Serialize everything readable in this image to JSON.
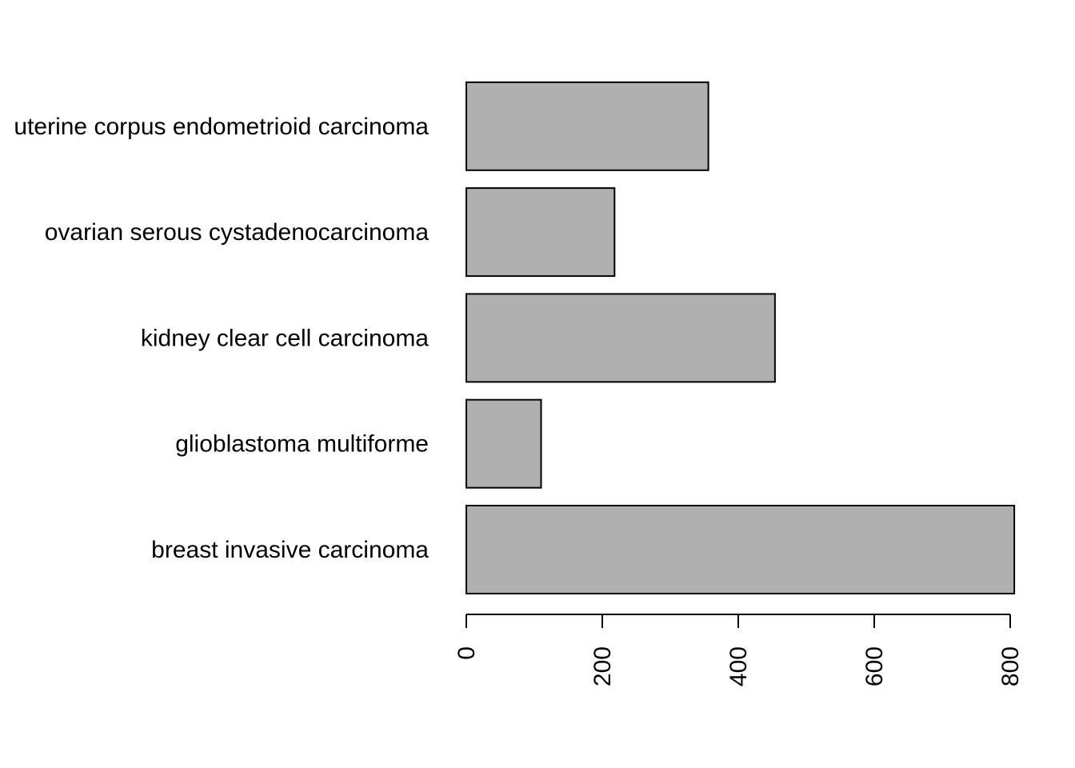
{
  "chart_data": {
    "type": "bar",
    "orientation": "horizontal",
    "categories": [
      "breast invasive carcinoma",
      "glioblastoma multiforme",
      "kidney clear cell carcinoma",
      "ovarian serous cystadenocarcinoma",
      "uterine corpus endometrioid carcinoma"
    ],
    "values": [
      806,
      110,
      454,
      218,
      356
    ],
    "xlim": [
      0,
      800
    ],
    "x_ticks": [
      0,
      200,
      400,
      600,
      800
    ],
    "title": "",
    "xlabel": "",
    "ylabel": "",
    "grid": false,
    "colors": {
      "bar_fill": "#b0b0b0",
      "bar_stroke": "#000000",
      "axis": "#000000",
      "text": "#000000"
    }
  }
}
